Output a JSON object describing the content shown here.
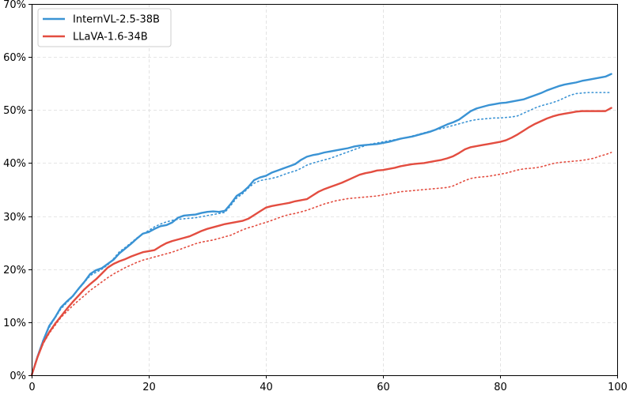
{
  "chart_data": {
    "type": "line",
    "title": "",
    "xlabel": "",
    "ylabel": "",
    "xlim": [
      0,
      100
    ],
    "ylim": [
      0,
      70
    ],
    "x_ticks": [
      0,
      20,
      40,
      60,
      80,
      100
    ],
    "y_ticks": [
      0,
      10,
      20,
      30,
      40,
      50,
      60,
      70
    ],
    "x_tick_labels": [
      "0",
      "20",
      "40",
      "60",
      "80",
      "100"
    ],
    "y_tick_labels": [
      "0%",
      "10%",
      "20%",
      "30%",
      "40%",
      "50%",
      "60%",
      "70%"
    ],
    "grid": true,
    "legend_position": "top-left",
    "x": [
      0,
      1,
      2,
      3,
      4,
      5,
      6,
      7,
      8,
      9,
      10,
      11,
      12,
      13,
      14,
      15,
      16,
      17,
      18,
      19,
      20,
      21,
      22,
      23,
      24,
      25,
      26,
      27,
      28,
      29,
      30,
      31,
      32,
      33,
      34,
      35,
      36,
      37,
      38,
      39,
      40,
      41,
      42,
      43,
      44,
      45,
      46,
      47,
      48,
      49,
      50,
      51,
      52,
      53,
      54,
      55,
      56,
      57,
      58,
      59,
      60,
      61,
      62,
      63,
      64,
      65,
      66,
      67,
      68,
      69,
      70,
      71,
      72,
      73,
      74,
      75,
      76,
      77,
      78,
      79,
      80,
      81,
      82,
      83,
      84,
      85,
      86,
      87,
      88,
      89,
      90,
      91,
      92,
      93,
      94,
      95,
      96,
      97,
      98,
      99
    ],
    "series": [
      {
        "name": "InternVL-2.5-38B",
        "color": "#3a93d4",
        "style": "solid",
        "values": [
          0.0,
          3.5,
          6.6,
          9.3,
          10.9,
          12.8,
          13.9,
          14.9,
          16.3,
          17.6,
          19.1,
          19.8,
          20.2,
          21.0,
          21.8,
          23.0,
          23.9,
          24.8,
          25.8,
          26.7,
          27.0,
          27.6,
          28.1,
          28.3,
          28.8,
          29.7,
          30.1,
          30.2,
          30.3,
          30.6,
          30.8,
          30.9,
          30.8,
          31.0,
          32.3,
          33.8,
          34.5,
          35.5,
          36.8,
          37.3,
          37.6,
          38.2,
          38.6,
          39.0,
          39.4,
          39.8,
          40.6,
          41.2,
          41.5,
          41.7,
          42.0,
          42.2,
          42.4,
          42.6,
          42.8,
          43.1,
          43.3,
          43.4,
          43.5,
          43.6,
          43.8,
          44.0,
          44.3,
          44.6,
          44.8,
          45.0,
          45.3,
          45.6,
          45.9,
          46.3,
          46.8,
          47.3,
          47.7,
          48.2,
          49.0,
          49.8,
          50.3,
          50.6,
          50.9,
          51.1,
          51.3,
          51.4,
          51.6,
          51.8,
          52.0,
          52.4,
          52.8,
          53.2,
          53.7,
          54.1,
          54.5,
          54.8,
          55.0,
          55.2,
          55.5,
          55.7,
          55.9,
          56.1,
          56.3,
          56.8
        ]
      },
      {
        "name": "",
        "color": "#3a93d4",
        "style": "dotted",
        "values": [
          0.0,
          3.6,
          6.8,
          9.0,
          10.8,
          12.5,
          13.7,
          14.8,
          16.2,
          17.5,
          18.8,
          19.4,
          20.0,
          20.8,
          22.0,
          23.3,
          24.1,
          25.0,
          25.9,
          26.6,
          27.3,
          28.0,
          28.5,
          28.9,
          29.2,
          29.4,
          29.5,
          29.6,
          29.7,
          29.9,
          30.1,
          30.3,
          30.5,
          30.7,
          32.0,
          33.4,
          34.2,
          35.3,
          36.2,
          36.7,
          36.9,
          37.1,
          37.4,
          37.8,
          38.2,
          38.5,
          39.0,
          39.6,
          40.0,
          40.3,
          40.6,
          40.9,
          41.3,
          41.7,
          42.1,
          42.5,
          42.9,
          43.3,
          43.6,
          43.8,
          44.0,
          44.2,
          44.4,
          44.6,
          44.8,
          45.1,
          45.4,
          45.7,
          46.0,
          46.3,
          46.5,
          46.8,
          47.1,
          47.4,
          47.7,
          48.0,
          48.2,
          48.3,
          48.4,
          48.5,
          48.5,
          48.6,
          48.7,
          48.9,
          49.4,
          49.9,
          50.4,
          50.8,
          51.1,
          51.4,
          51.8,
          52.3,
          52.8,
          53.1,
          53.2,
          53.3,
          53.3,
          53.3,
          53.3,
          53.3
        ]
      },
      {
        "name": "LLaVA-1.6-34B",
        "color": "#e34d40",
        "style": "solid",
        "values": [
          0.0,
          3.4,
          6.2,
          8.1,
          9.7,
          11.1,
          12.5,
          13.8,
          15.0,
          16.2,
          17.2,
          18.1,
          19.2,
          20.3,
          21.0,
          21.5,
          21.9,
          22.4,
          22.8,
          23.2,
          23.4,
          23.6,
          24.3,
          24.9,
          25.3,
          25.6,
          25.9,
          26.2,
          26.7,
          27.2,
          27.6,
          27.9,
          28.2,
          28.5,
          28.7,
          28.9,
          29.1,
          29.5,
          30.2,
          30.9,
          31.6,
          31.9,
          32.1,
          32.3,
          32.5,
          32.8,
          33.0,
          33.2,
          33.9,
          34.6,
          35.1,
          35.5,
          35.9,
          36.3,
          36.8,
          37.3,
          37.8,
          38.1,
          38.3,
          38.6,
          38.7,
          38.9,
          39.1,
          39.4,
          39.6,
          39.8,
          39.9,
          40.0,
          40.2,
          40.4,
          40.6,
          40.9,
          41.3,
          41.9,
          42.6,
          43.0,
          43.2,
          43.4,
          43.6,
          43.8,
          44.0,
          44.3,
          44.8,
          45.4,
          46.1,
          46.8,
          47.4,
          47.9,
          48.4,
          48.8,
          49.1,
          49.3,
          49.5,
          49.7,
          49.8,
          49.8,
          49.8,
          49.8,
          49.8,
          50.4
        ]
      },
      {
        "name": "",
        "color": "#e34d40",
        "style": "dotted",
        "values": [
          0.0,
          3.4,
          6.0,
          7.9,
          9.4,
          10.9,
          12.0,
          13.1,
          14.1,
          15.0,
          16.0,
          16.8,
          17.6,
          18.4,
          19.1,
          19.7,
          20.3,
          20.8,
          21.3,
          21.7,
          22.0,
          22.3,
          22.6,
          22.9,
          23.2,
          23.6,
          24.0,
          24.4,
          24.8,
          25.1,
          25.3,
          25.5,
          25.8,
          26.1,
          26.4,
          26.9,
          27.4,
          27.8,
          28.1,
          28.5,
          28.8,
          29.2,
          29.6,
          30.0,
          30.3,
          30.5,
          30.8,
          31.1,
          31.5,
          31.9,
          32.3,
          32.6,
          32.9,
          33.1,
          33.3,
          33.4,
          33.5,
          33.6,
          33.7,
          33.8,
          34.0,
          34.2,
          34.4,
          34.6,
          34.7,
          34.8,
          34.9,
          35.0,
          35.1,
          35.2,
          35.3,
          35.4,
          35.7,
          36.2,
          36.7,
          37.1,
          37.3,
          37.4,
          37.5,
          37.7,
          37.9,
          38.1,
          38.4,
          38.7,
          38.9,
          39.0,
          39.1,
          39.3,
          39.6,
          39.9,
          40.1,
          40.2,
          40.3,
          40.4,
          40.5,
          40.7,
          40.9,
          41.3,
          41.6,
          42.0
        ]
      }
    ]
  }
}
